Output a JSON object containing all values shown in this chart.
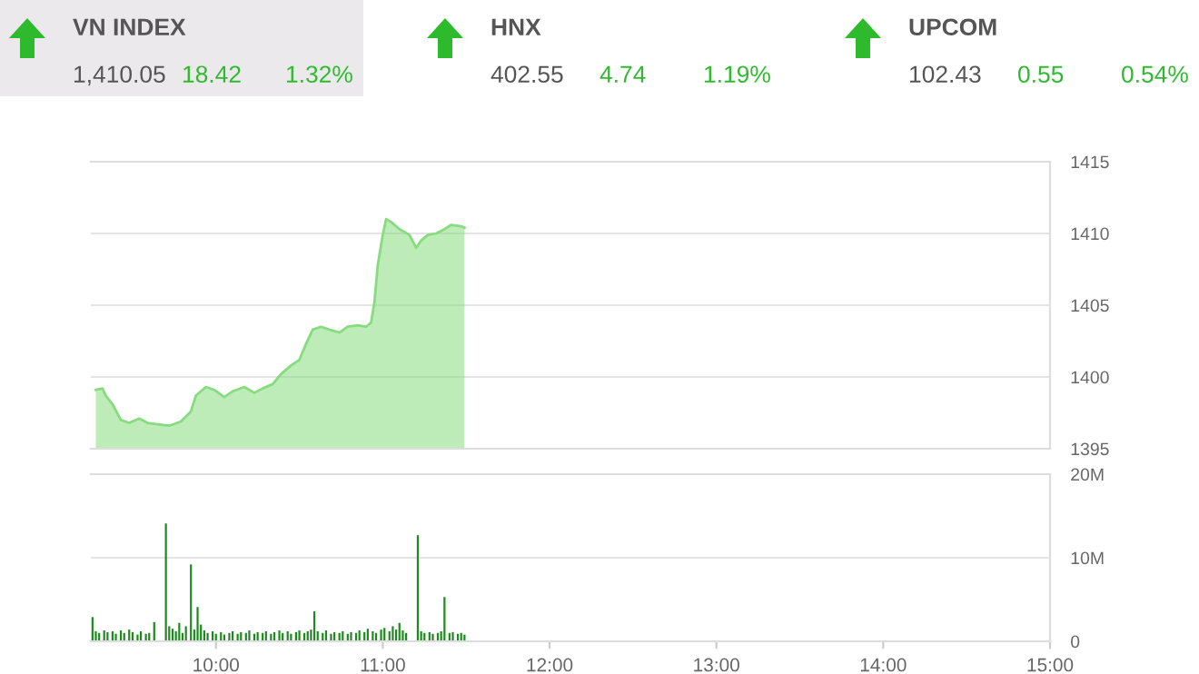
{
  "chart_data": [
    {
      "type": "other",
      "title": "VN INDEX",
      "annotations": [
        "1,410.05",
        "18.42",
        "1.32%"
      ]
    },
    {
      "type": "other",
      "title": "HNX",
      "annotations": [
        "402.55",
        "4.74",
        "1.19%"
      ]
    },
    {
      "type": "other",
      "title": "UPCOM",
      "annotations": [
        "102.43",
        "0.55",
        "0.54%"
      ]
    },
    {
      "type": "area",
      "color": "#86dc7e",
      "grid": "y",
      "tick_labels": "y",
      "xlim": [
        9.25,
        15
      ],
      "ylim": [
        1395,
        1415
      ],
      "yticks": [
        1395,
        1400,
        1405,
        1410,
        1415
      ],
      "x": [
        9.28,
        9.32,
        9.34,
        9.38,
        9.43,
        9.48,
        9.54,
        9.59,
        9.65,
        9.72,
        9.79,
        9.85,
        9.88,
        9.94,
        9.99,
        10.05,
        10.1,
        10.17,
        10.23,
        10.28,
        10.34,
        10.39,
        10.45,
        10.5,
        10.54,
        10.58,
        10.63,
        10.68,
        10.74,
        10.79,
        10.85,
        10.9,
        10.93,
        10.95,
        10.97,
        11.0,
        11.02,
        11.05,
        11.1,
        11.16,
        11.2,
        11.23,
        11.27,
        11.32,
        11.37,
        11.41,
        11.47,
        11.49
      ],
      "values": [
        1399.1,
        1399.2,
        1398.7,
        1398.1,
        1397.0,
        1396.8,
        1397.1,
        1396.8,
        1396.7,
        1396.6,
        1396.9,
        1397.6,
        1398.7,
        1399.3,
        1399.1,
        1398.6,
        1399.0,
        1399.3,
        1398.9,
        1399.2,
        1399.5,
        1400.2,
        1400.8,
        1401.2,
        1402.3,
        1403.3,
        1403.5,
        1403.3,
        1403.1,
        1403.5,
        1403.6,
        1403.5,
        1403.8,
        1405.2,
        1407.8,
        1409.9,
        1411.0,
        1410.8,
        1410.3,
        1409.9,
        1409.0,
        1409.5,
        1409.9,
        1410.0,
        1410.3,
        1410.6,
        1410.5,
        1410.4
      ]
    },
    {
      "type": "bar",
      "color": "#1e8a1e",
      "grid": "y",
      "xlim": [
        9.25,
        15
      ],
      "ylim": [
        0,
        20
      ],
      "yticks": [
        0,
        {
          "value": 10,
          "label": "10M"
        },
        {
          "value": 20,
          "label": "20M"
        }
      ],
      "xticks": [
        {
          "value": 10,
          "label": "10:00"
        },
        {
          "value": 11,
          "label": "11:00"
        },
        {
          "value": 12,
          "label": "12:00"
        },
        {
          "value": 13,
          "label": "13:00"
        },
        {
          "value": 14,
          "label": "14:00"
        },
        {
          "value": 15,
          "label": "15:00"
        }
      ],
      "x": [
        9.26,
        9.28,
        9.3,
        9.33,
        9.35,
        9.38,
        9.4,
        9.43,
        9.45,
        9.48,
        9.5,
        9.53,
        9.55,
        9.58,
        9.6,
        9.63,
        9.7,
        9.72,
        9.74,
        9.76,
        9.78,
        9.8,
        9.82,
        9.85,
        9.87,
        9.89,
        9.91,
        9.93,
        9.95,
        9.98,
        10.0,
        10.03,
        10.05,
        10.08,
        10.1,
        10.13,
        10.15,
        10.18,
        10.2,
        10.23,
        10.25,
        10.28,
        10.3,
        10.33,
        10.35,
        10.38,
        10.4,
        10.43,
        10.45,
        10.48,
        10.5,
        10.53,
        10.55,
        10.57,
        10.59,
        10.61,
        10.64,
        10.66,
        10.69,
        10.71,
        10.74,
        10.76,
        10.79,
        10.81,
        10.84,
        10.86,
        10.89,
        10.91,
        10.94,
        10.96,
        10.99,
        11.01,
        11.04,
        11.06,
        11.08,
        11.1,
        11.12,
        11.14,
        11.21,
        11.23,
        11.25,
        11.28,
        11.3,
        11.33,
        11.35,
        11.37,
        11.4,
        11.42,
        11.45,
        11.47,
        11.49
      ],
      "values": [
        2.9,
        1.2,
        1.0,
        1.3,
        1.1,
        1.2,
        0.9,
        1.3,
        1.0,
        1.4,
        1.1,
        0.8,
        1.2,
        0.9,
        1.0,
        2.3,
        14.1,
        1.8,
        1.5,
        1.2,
        2.2,
        1.0,
        1.8,
        9.2,
        1.4,
        4.1,
        2.0,
        1.3,
        1.0,
        1.2,
        0.9,
        1.1,
        0.8,
        1.0,
        1.2,
        0.9,
        1.1,
        1.0,
        1.3,
        0.9,
        1.1,
        1.0,
        1.2,
        0.9,
        1.1,
        1.3,
        1.0,
        1.2,
        0.9,
        1.1,
        1.3,
        1.0,
        1.2,
        1.4,
        3.6,
        1.2,
        1.0,
        1.3,
        0.9,
        1.1,
        1.0,
        1.2,
        0.9,
        1.1,
        1.0,
        1.3,
        1.1,
        1.5,
        1.2,
        1.0,
        1.4,
        1.6,
        1.2,
        1.8,
        1.4,
        2.2,
        1.3,
        1.0,
        12.7,
        1.2,
        1.0,
        1.1,
        0.9,
        1.0,
        1.2,
        5.3,
        1.0,
        1.1,
        0.9,
        1.0,
        0.8
      ]
    }
  ]
}
